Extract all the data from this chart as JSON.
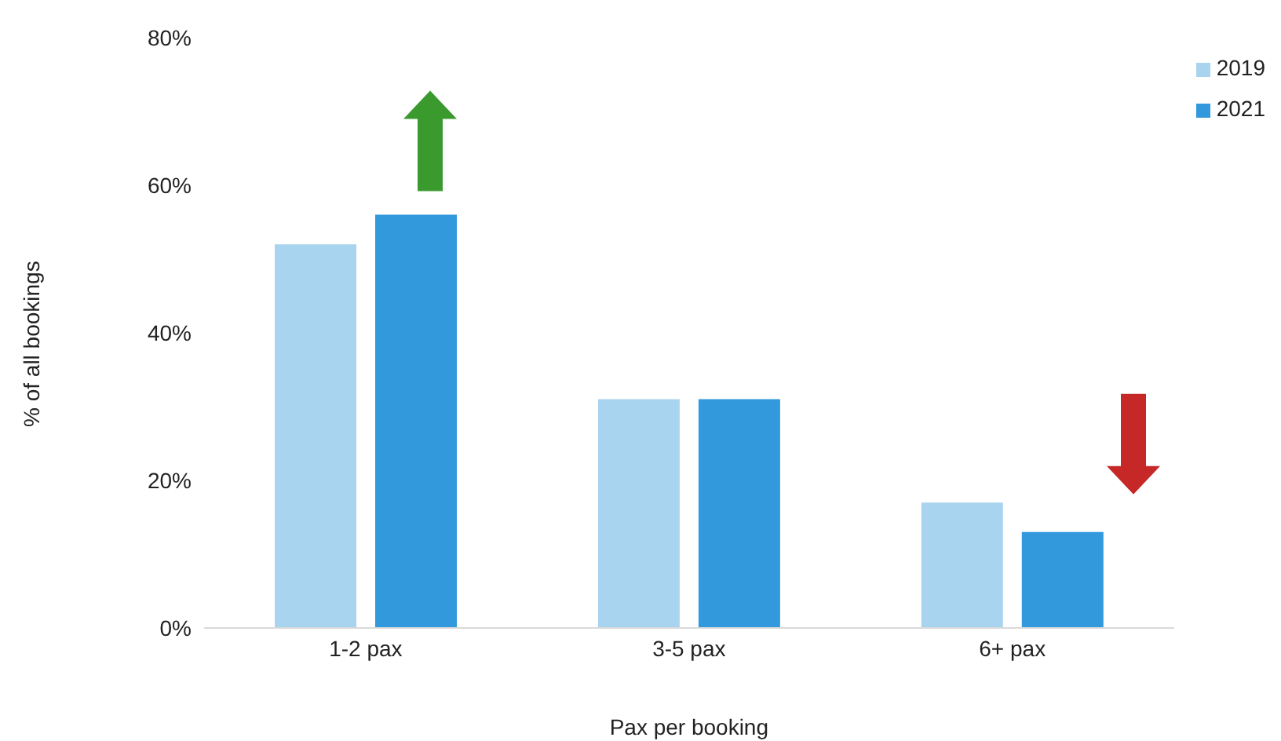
{
  "chart_data": {
    "type": "bar",
    "xlabel": "Pax per booking",
    "ylabel": "% of all bookings",
    "categories": [
      "1-2 pax",
      "3-5 pax",
      "6+ pax"
    ],
    "series": [
      {
        "name": "2019",
        "color": "#a9d4ef",
        "values": [
          52,
          31,
          17
        ]
      },
      {
        "name": "2021",
        "color": "#3399dd",
        "values": [
          56,
          31,
          13
        ]
      }
    ],
    "ylim": [
      0,
      80
    ],
    "yticks": [
      {
        "value": 0,
        "label": "0%"
      },
      {
        "value": 20,
        "label": "20%"
      },
      {
        "value": 40,
        "label": "40%"
      },
      {
        "value": 60,
        "label": "60%"
      },
      {
        "value": 80,
        "label": "80%"
      }
    ],
    "grid": false,
    "legend": "top right"
  }
}
